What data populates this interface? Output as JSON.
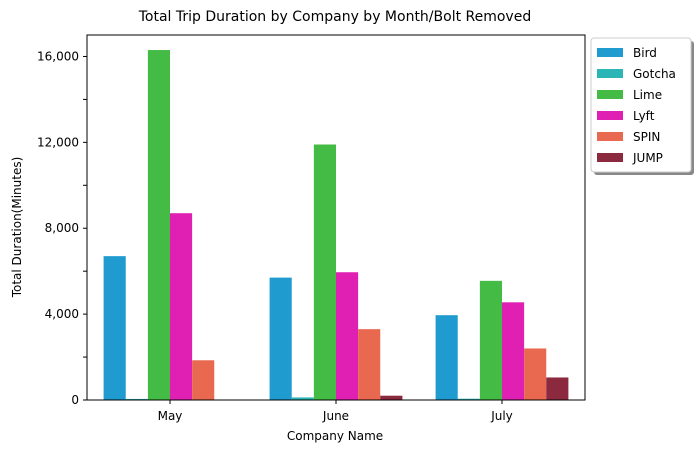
{
  "chart_data": {
    "type": "bar",
    "title": "Total Trip Duration by Company by Month/Bolt Removed",
    "xlabel": "Company Name",
    "ylabel": "Total Duration(Minutes)",
    "categories": [
      "May",
      "June",
      "July"
    ],
    "ylim": [
      0,
      17000
    ],
    "yticks": [
      0,
      4000,
      8000,
      12000,
      16000
    ],
    "ytick_labels": [
      "0",
      "4,000",
      "8,000",
      "12,000",
      "16,000"
    ],
    "legend_position": "outside-top-right",
    "grid": false,
    "series": [
      {
        "name": "Bird",
        "color": "#1f9bcf",
        "values": [
          6700,
          5700,
          3950
        ]
      },
      {
        "name": "Gotcha",
        "color": "#2bb5b5",
        "values": [
          50,
          120,
          60
        ]
      },
      {
        "name": "Lime",
        "color": "#44bb44",
        "values": [
          16300,
          11900,
          5550
        ]
      },
      {
        "name": "Lyft",
        "color": "#e01fb3",
        "values": [
          8700,
          5950,
          4550
        ]
      },
      {
        "name": "SPIN",
        "color": "#e8694f",
        "values": [
          1850,
          3300,
          2400
        ]
      },
      {
        "name": "JUMP",
        "color": "#8b2a3e",
        "values": [
          0,
          200,
          1050
        ]
      }
    ]
  }
}
